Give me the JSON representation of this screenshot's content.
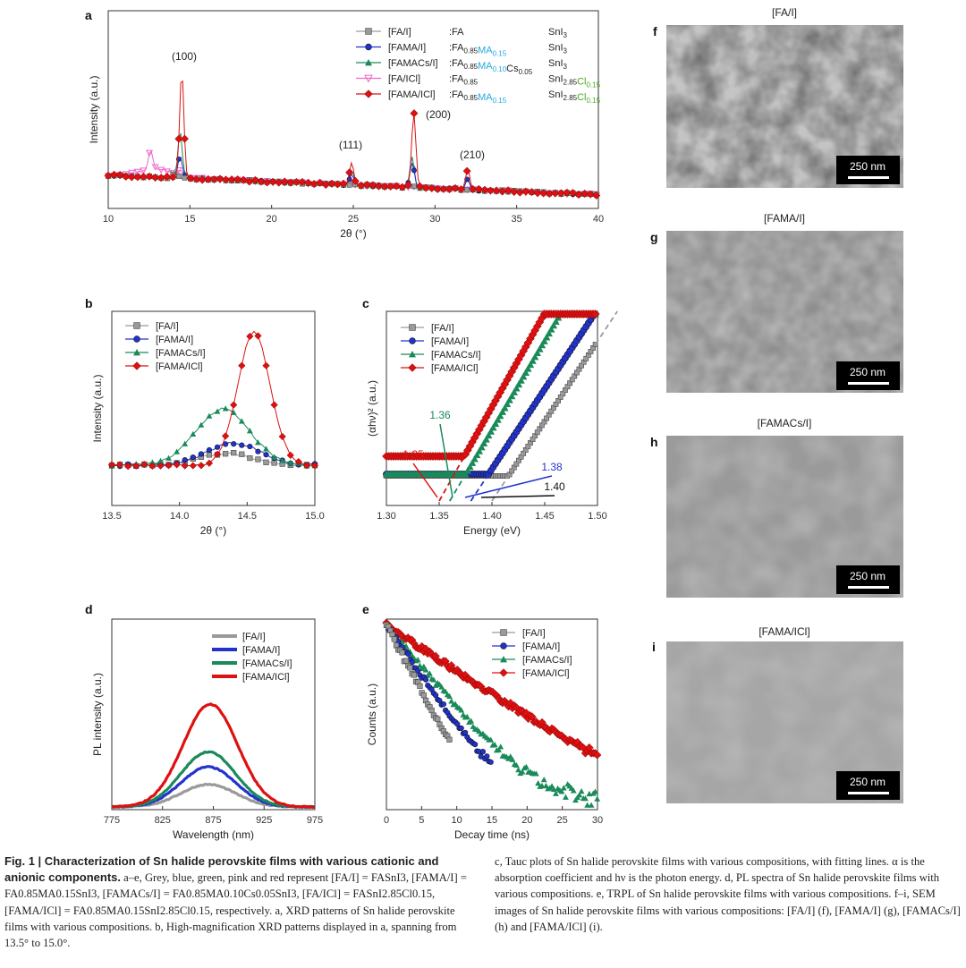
{
  "colors": {
    "FA_I": "#9a9a9a",
    "FAMA_I": "#2233cc",
    "FAMACs_I": "#1a8a5a",
    "FA_ICl": "#ee66cc",
    "FAMA_ICl": "#dd1111",
    "MA_blue": "#22aadd",
    "Cl_green": "#44aa22"
  },
  "legend_a": [
    {
      "name": "[FA/I]",
      "formula": ":FA",
      "tail": "SnI",
      "tsub": "3"
    },
    {
      "name": "[FAMA/I]",
      "formula": ":FA",
      "fsub": "0.85",
      "ma": "MA",
      "masub": "0.15",
      "tail": "SnI",
      "tsub": "3"
    },
    {
      "name": "[FAMACs/I]",
      "formula": ":FA",
      "fsub": "0.85",
      "ma": "MA",
      "masub": "0.10",
      "cs": "Cs",
      "cssub": "0.05",
      "tail": "SnI",
      "tsub": "3"
    },
    {
      "name": "[FA/ICl]",
      "formula": ":FA",
      "fsub": "0.85",
      "tail": "SnI",
      "tsub": "2.85",
      "cl": "Cl",
      "clsub": "0.15"
    },
    {
      "name": "[FAMA/ICl]",
      "formula": ":FA",
      "fsub": "0.85",
      "ma": "MA",
      "masub": "0.15",
      "tail": "SnI",
      "tsub": "2.85",
      "cl": "Cl",
      "clsub": "0.15"
    }
  ],
  "legend_four": [
    "[FA/I]",
    "[FAMA/I]",
    "[FAMACs/I]",
    "[FAMA/ICl]"
  ],
  "panel_labels": [
    "a",
    "b",
    "c",
    "d",
    "e",
    "f",
    "g",
    "h",
    "i"
  ],
  "sem": [
    {
      "panel": "f",
      "title": "[FA/I]",
      "scale": "250 nm"
    },
    {
      "panel": "g",
      "title": "[FAMA/I]",
      "scale": "250 nm"
    },
    {
      "panel": "h",
      "title": "[FAMACs/I]",
      "scale": "250 nm"
    },
    {
      "panel": "i",
      "title": "[FAMA/ICl]",
      "scale": "250 nm"
    }
  ],
  "chart_data": [
    {
      "panel": "a",
      "type": "line",
      "xlabel": "2θ (°)",
      "ylabel": "Intensity (a.u.)",
      "xlim": [
        10,
        40
      ],
      "xticks": [
        10,
        15,
        20,
        25,
        30,
        35,
        40
      ],
      "peaks": [
        {
          "label": "(100)",
          "x": 14.5
        },
        {
          "label": "(111)",
          "x": 24.9
        },
        {
          "label": "(200)",
          "x": 28.7
        },
        {
          "label": "(210)",
          "x": 32.0
        }
      ],
      "series": [
        {
          "name": "[FA/I]",
          "peaks": [
            [
              14.1,
              0.3
            ],
            [
              24.9,
              0.05
            ],
            [
              28.6,
              0.1
            ]
          ]
        },
        {
          "name": "[FAMA/I]",
          "peaks": [
            [
              14.4,
              0.9
            ],
            [
              24.9,
              0.45
            ],
            [
              28.6,
              1.0
            ],
            [
              32.0,
              0.4
            ]
          ]
        },
        {
          "name": "[FAMACs/I]",
          "peaks": [
            [
              14.4,
              1.9
            ],
            [
              24.9,
              0.55
            ],
            [
              28.6,
              1.2
            ],
            [
              32.0,
              0.4
            ]
          ]
        },
        {
          "name": "[FA/ICl]",
          "peaks": [
            [
              12.6,
              0.8
            ],
            [
              14.4,
              0.2
            ]
          ]
        },
        {
          "name": "[FAMA/ICl]",
          "peaks": [
            [
              14.5,
              4.3
            ],
            [
              24.9,
              0.9
            ],
            [
              28.7,
              3.0
            ],
            [
              32.0,
              0.8
            ]
          ]
        }
      ]
    },
    {
      "panel": "b",
      "type": "line",
      "xlabel": "2θ (°)",
      "ylabel": "Intensity (a.u.)",
      "xlim": [
        13.5,
        15.0
      ],
      "xticks": [
        "13.5",
        "14.0",
        "14.5",
        "15.0"
      ],
      "series": [
        {
          "name": "[FA/I]",
          "peak_x": 14.35,
          "amplitude": 0.4
        },
        {
          "name": "[FAMA/I]",
          "peak_x": 14.4,
          "amplitude": 0.75
        },
        {
          "name": "[FAMACs/I]",
          "peak_x": 14.32,
          "amplitude": 1.9
        },
        {
          "name": "[FAMA/ICl]",
          "peak_x": 14.55,
          "amplitude": 4.5
        }
      ]
    },
    {
      "panel": "c",
      "type": "line",
      "xlabel": "Energy (eV)",
      "ylabel": "(αhν)² (a.u.)",
      "xlim": [
        1.3,
        1.5
      ],
      "xticks": [
        "1.30",
        "1.35",
        "1.40",
        "1.45",
        "1.50"
      ],
      "series": [
        {
          "name": "[FA/I]",
          "bandgap": 1.4,
          "annotation": "1.40"
        },
        {
          "name": "[FAMA/I]",
          "bandgap": 1.38,
          "annotation": "1.38"
        },
        {
          "name": "[FAMACs/I]",
          "bandgap": 1.36,
          "annotation": "1.36"
        },
        {
          "name": "[FAMA/ICl]",
          "bandgap": 1.35,
          "annotation": "1.35"
        }
      ]
    },
    {
      "panel": "d",
      "type": "line",
      "xlabel": "Wavelength (nm)",
      "ylabel": "PL intensity (a.u.)",
      "xlim": [
        775,
        975
      ],
      "xticks": [
        775,
        825,
        875,
        925,
        975
      ],
      "series": [
        {
          "name": "[FA/I]",
          "peak_x": 870,
          "amplitude": 0.18
        },
        {
          "name": "[FAMA/I]",
          "peak_x": 870,
          "amplitude": 0.32
        },
        {
          "name": "[FAMACs/I]",
          "peak_x": 870,
          "amplitude": 0.44
        },
        {
          "name": "[FAMA/ICl]",
          "peak_x": 872,
          "amplitude": 0.82
        }
      ]
    },
    {
      "panel": "e",
      "type": "scatter",
      "xlabel": "Decay time (ns)",
      "ylabel": "Counts (a.u.)",
      "xlim": [
        0,
        30
      ],
      "xticks": [
        0,
        5,
        10,
        15,
        20,
        25,
        30
      ],
      "series": [
        {
          "name": "[FA/I]",
          "tau_ns": 2.6
        },
        {
          "name": "[FAMA/I]",
          "tau_ns": 3.4
        },
        {
          "name": "[FAMACs/I]",
          "tau_ns": 4.2
        },
        {
          "name": "[FAMA/ICl]",
          "tau_ns": 7.5
        }
      ]
    }
  ],
  "caption": {
    "title": "Fig. 1 | Characterization of Sn halide perovskite films with various cationic and anionic components.",
    "left_text": "a–e, Grey, blue, green, pink and red represent [FA/I] = FASnI3, [FAMA/I] = FA0.85MA0.15SnI3, [FAMACs/I] = FA0.85MA0.10Cs0.05SnI3, [FA/ICl] = FASnI2.85Cl0.15, [FAMA/ICl] = FA0.85MA0.15SnI2.85Cl0.15, respectively. a, XRD patterns of Sn halide perovskite films with various compositions. b, High-magnification XRD patterns displayed in a, spanning from 13.5° to 15.0°.",
    "right_text": "c, Tauc plots of Sn halide perovskite films with various compositions, with fitting lines. α is the absorption coefficient and hν is the photon energy. d, PL spectra of Sn halide perovskite films with various compositions. e, TRPL of Sn halide perovskite films with various compositions. f–i, SEM images of Sn halide perovskite films with various compositions: [FA/I] (f), [FAMA/I] (g), [FAMACs/I] (h) and [FAMA/ICl] (i)."
  }
}
